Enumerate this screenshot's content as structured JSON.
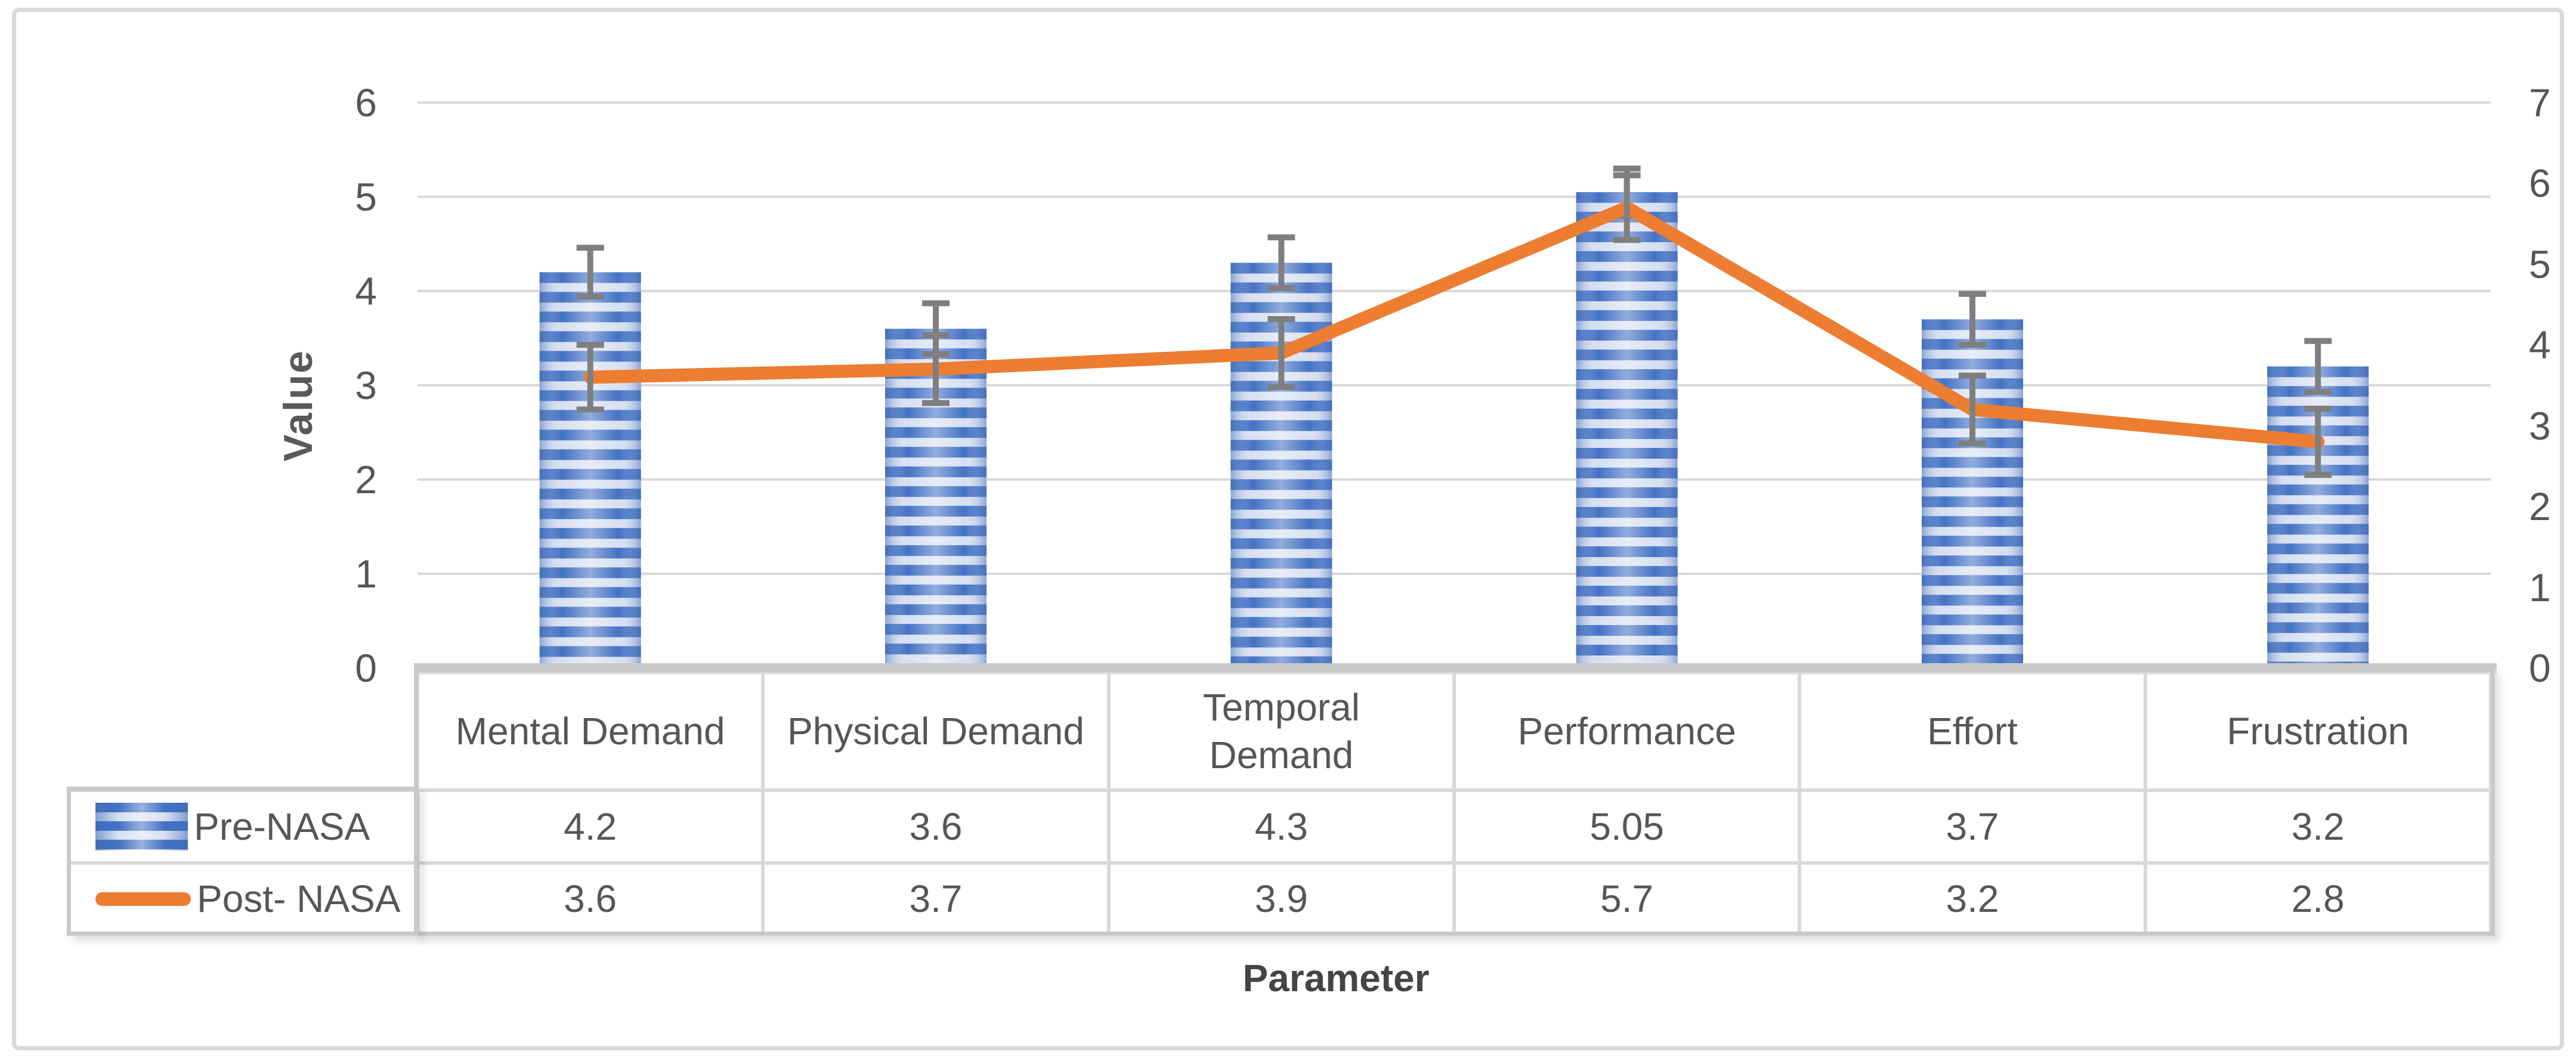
{
  "chart_data": {
    "type": "combo-bar-line",
    "categories": [
      "Mental Demand",
      "Physical Demand",
      "Temporal\nDemand",
      "Performance",
      "Effort",
      "Frustration"
    ],
    "series": [
      {
        "name": "Pre-NASA",
        "type": "bar",
        "axis": "left",
        "values": [
          4.2,
          3.6,
          4.3,
          5.05,
          3.7,
          3.2
        ],
        "error": [
          0.26,
          0.27,
          0.27,
          0.25,
          0.27,
          0.27
        ],
        "color": "#4472C4"
      },
      {
        "name": "Post- NASA",
        "type": "line",
        "axis": "right",
        "values": [
          3.6,
          3.7,
          3.9,
          5.7,
          3.2,
          2.8
        ],
        "error": [
          0.4,
          0.42,
          0.42,
          0.4,
          0.42,
          0.41
        ],
        "color": "#ED7D31"
      }
    ],
    "left_axis": {
      "title": "Value",
      "min": 0,
      "max": 6,
      "ticks": [
        0,
        1,
        2,
        3,
        4,
        5,
        6
      ]
    },
    "right_axis": {
      "min": 0,
      "max": 7,
      "ticks": [
        0,
        1,
        2,
        3,
        4,
        5,
        6,
        7
      ]
    },
    "xlabel": "Parameter",
    "grid": true,
    "legend_position": "table-left",
    "colors": {
      "bar": "#4472C4",
      "bar_light": "#D7E0F2",
      "line": "#ED7D31",
      "error": "#7F7F7F",
      "grid": "#D9D9D9",
      "text": "#565656",
      "border": "#D9D9D9"
    }
  }
}
